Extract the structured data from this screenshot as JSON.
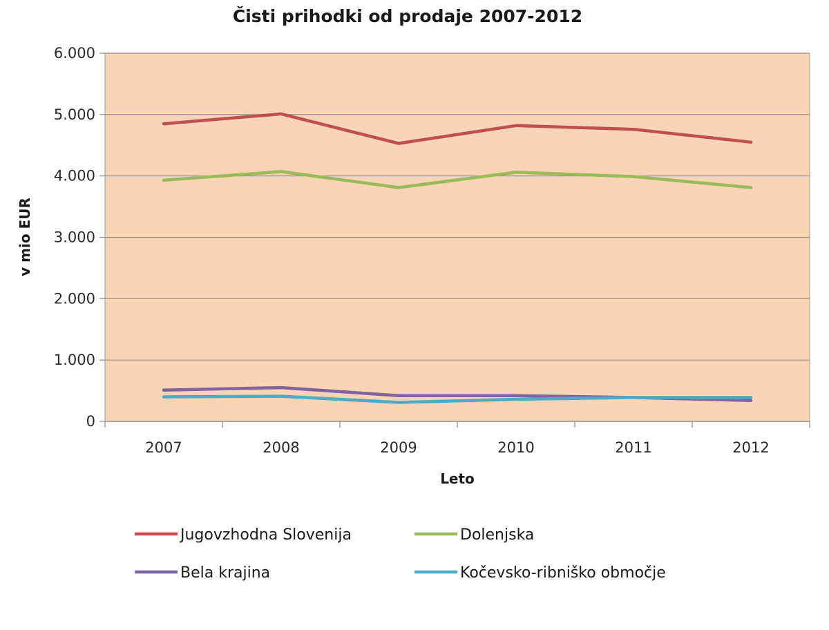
{
  "chart_data": {
    "type": "line",
    "title": "Čisti prihodki od prodaje 2007-2012",
    "xlabel": "Leto",
    "ylabel": "v mio EUR",
    "categories": [
      "2007",
      "2008",
      "2009",
      "2010",
      "2011",
      "2012"
    ],
    "ylim": [
      0,
      6000
    ],
    "yticks": [
      0,
      1000,
      2000,
      3000,
      4000,
      5000,
      6000
    ],
    "ytick_labels": [
      "0",
      "1.000",
      "2.000",
      "3.000",
      "4.000",
      "5.000",
      "6.000"
    ],
    "grid": true,
    "legend_position": "bottom",
    "plot_background": "#FAD5B5",
    "series": [
      {
        "name": "Jugovzhodna Slovenija",
        "color": "#C0504D",
        "values": [
          4850,
          5010,
          4530,
          4820,
          4760,
          4550
        ]
      },
      {
        "name": "Dolenjska",
        "color": "#9BBB59",
        "values": [
          3930,
          4070,
          3810,
          4060,
          3990,
          3810
        ]
      },
      {
        "name": "Bela krajina",
        "color": "#8064A2",
        "values": [
          510,
          550,
          420,
          420,
          390,
          340
        ]
      },
      {
        "name": "Kočevsko-ribniško območje",
        "color": "#4BACC6",
        "values": [
          400,
          410,
          310,
          360,
          390,
          390
        ]
      }
    ]
  }
}
